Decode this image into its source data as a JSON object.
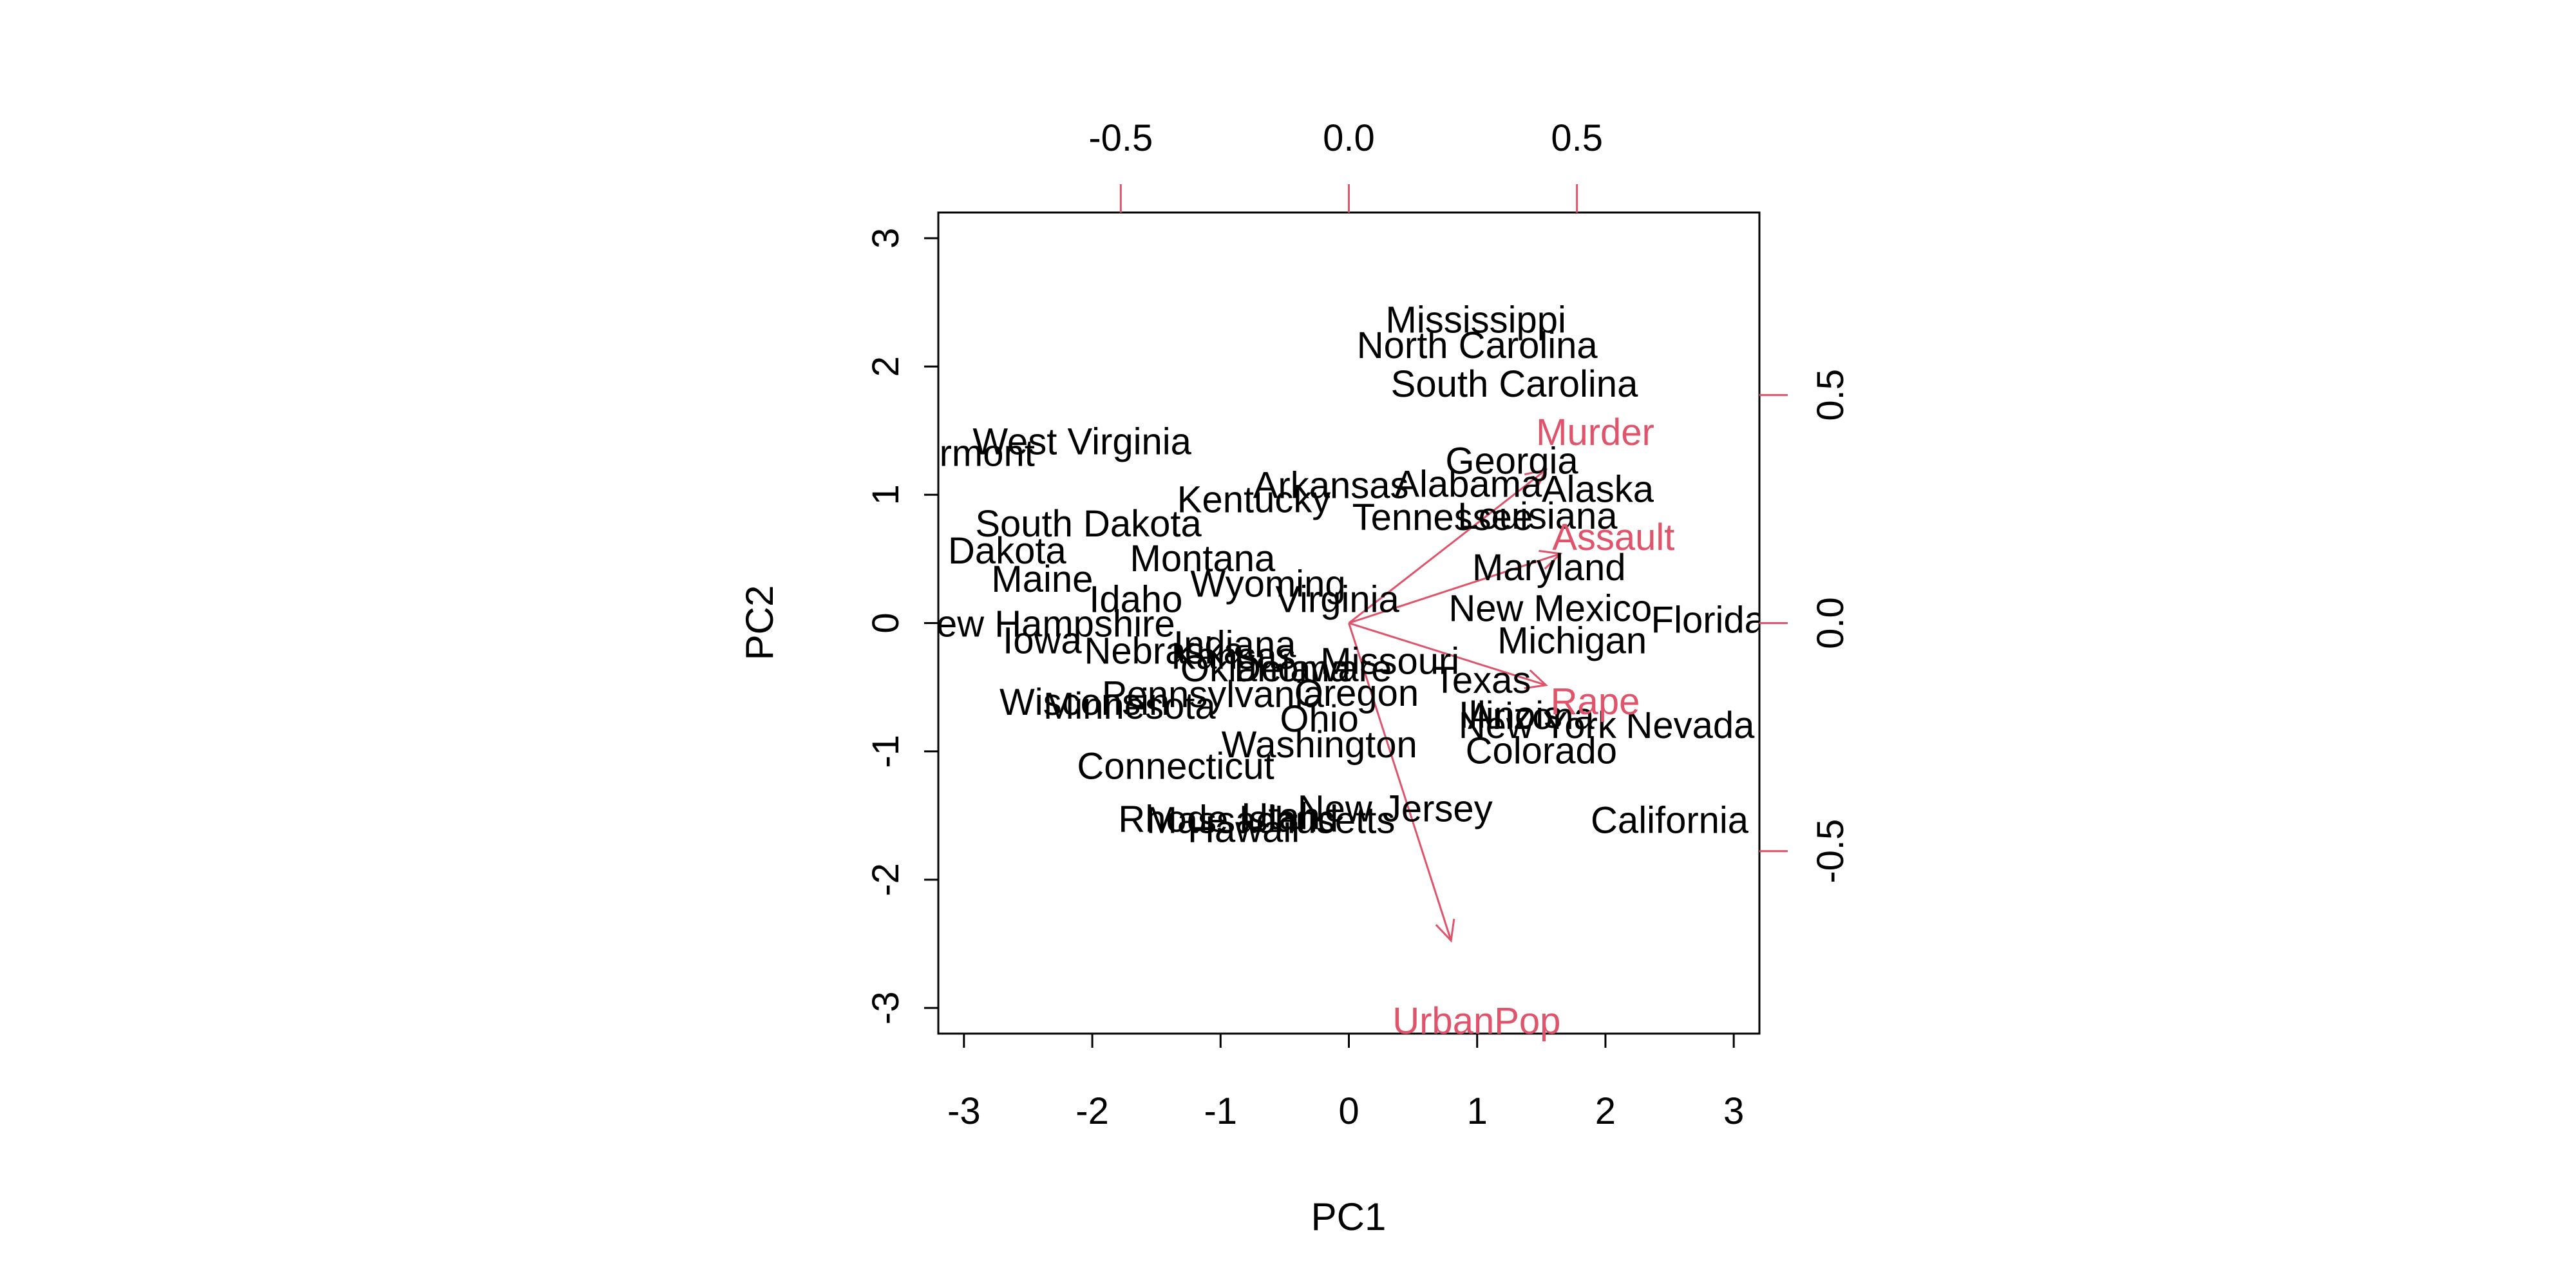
{
  "chart_data": {
    "type": "scatter",
    "title": "",
    "xlabel": "PC1",
    "ylabel": "PC2",
    "xlim": [
      -3.2,
      3.2
    ],
    "ylim": [
      -3.2,
      3.2
    ],
    "xticks": [
      "-3",
      "-2",
      "-1",
      "0",
      "1",
      "2",
      "3"
    ],
    "yticks": [
      "-3",
      "-2",
      "-1",
      "0",
      "1",
      "2",
      "3"
    ],
    "loadings_lim": [
      -0.9,
      0.9
    ],
    "top_ticks": [
      "-0.5",
      "0.0",
      "0.5"
    ],
    "right_ticks": [
      "-0.5",
      "0.0",
      "0.5"
    ],
    "colors": {
      "scores": "#000000",
      "loadings": "#DF536B"
    },
    "grid": false,
    "points": [
      {
        "label": "Mississippi",
        "x": 0.99,
        "y": 2.37
      },
      {
        "label": "North Carolina",
        "x": 1.0,
        "y": 2.17
      },
      {
        "label": "South Carolina",
        "x": 1.29,
        "y": 1.87
      },
      {
        "label": "West Virginia",
        "x": -2.08,
        "y": 1.42
      },
      {
        "label": "Vermont",
        "x": -2.99,
        "y": 1.33
      },
      {
        "label": "Georgia",
        "x": 1.27,
        "y": 1.27
      },
      {
        "label": "Arkansas",
        "x": -0.14,
        "y": 1.08
      },
      {
        "label": "Alabama",
        "x": 0.93,
        "y": 1.09
      },
      {
        "label": "Alaska",
        "x": 1.94,
        "y": 1.05
      },
      {
        "label": "Kentucky",
        "x": -0.74,
        "y": 0.97
      },
      {
        "label": "South Dakota",
        "x": -2.03,
        "y": 0.78
      },
      {
        "label": "Tennessee",
        "x": 0.73,
        "y": 0.83
      },
      {
        "label": "Louisiana",
        "x": 1.47,
        "y": 0.84
      },
      {
        "label": "North Dakota",
        "x": -3.06,
        "y": 0.57
      },
      {
        "label": "Montana",
        "x": -1.14,
        "y": 0.51
      },
      {
        "label": "Maryland",
        "x": 1.56,
        "y": 0.44
      },
      {
        "label": "Maine",
        "x": -2.39,
        "y": 0.35
      },
      {
        "label": "Idaho",
        "x": -1.66,
        "y": 0.19
      },
      {
        "label": "Wyoming",
        "x": -0.63,
        "y": 0.31
      },
      {
        "label": "Virginia",
        "x": -0.09,
        "y": 0.19
      },
      {
        "label": "New Mexico",
        "x": 1.57,
        "y": 0.12
      },
      {
        "label": "Florida",
        "x": 2.8,
        "y": 0.03
      },
      {
        "label": "New Hampshire",
        "x": -2.39,
        "y": 0.0
      },
      {
        "label": "Iowa",
        "x": -2.39,
        "y": -0.13
      },
      {
        "label": "Michigan",
        "x": 1.74,
        "y": -0.13
      },
      {
        "label": "Indiana",
        "x": -0.89,
        "y": -0.16
      },
      {
        "label": "Nebraska",
        "x": -1.44,
        "y": -0.21
      },
      {
        "label": "Kansas",
        "x": -0.9,
        "y": -0.25
      },
      {
        "label": "Oklahoma",
        "x": -0.65,
        "y": -0.35
      },
      {
        "label": "Delaware",
        "x": -0.28,
        "y": -0.35
      },
      {
        "label": "Missouri",
        "x": 0.32,
        "y": -0.29
      },
      {
        "label": "Texas",
        "x": 1.04,
        "y": -0.44
      },
      {
        "label": "Pennsylvania",
        "x": -1.06,
        "y": -0.55
      },
      {
        "label": "Oregon",
        "x": 0.06,
        "y": -0.54
      },
      {
        "label": "Wisconsin",
        "x": -2.06,
        "y": -0.61
      },
      {
        "label": "Minnesota",
        "x": -1.71,
        "y": -0.64
      },
      {
        "label": "Ohio",
        "x": -0.23,
        "y": -0.74
      },
      {
        "label": "Illinois",
        "x": 1.26,
        "y": -0.71
      },
      {
        "label": "Arizona",
        "x": 1.42,
        "y": -0.72
      },
      {
        "label": "New York",
        "x": 1.47,
        "y": -0.79
      },
      {
        "label": "Nevada",
        "x": 2.66,
        "y": -0.79
      },
      {
        "label": "Washington",
        "x": -0.23,
        "y": -0.94
      },
      {
        "label": "Colorado",
        "x": 1.5,
        "y": -0.99
      },
      {
        "label": "Connecticut",
        "x": -1.35,
        "y": -1.11
      },
      {
        "label": "New Jersey",
        "x": 0.36,
        "y": -1.44
      },
      {
        "label": "Rhode Island",
        "x": -0.94,
        "y": -1.52
      },
      {
        "label": "Utah",
        "x": -0.53,
        "y": -1.5
      },
      {
        "label": "Massachusetts",
        "x": -0.61,
        "y": -1.53
      },
      {
        "label": "Hawaii",
        "x": -0.82,
        "y": -1.6
      },
      {
        "label": "California",
        "x": 2.5,
        "y": -1.53
      }
    ],
    "loadings": [
      {
        "name": "Murder",
        "x": 0.54,
        "y": 0.42
      },
      {
        "name": "Assault",
        "x": 0.58,
        "y": 0.19
      },
      {
        "name": "UrbanPop",
        "x": 0.28,
        "y": -0.87
      },
      {
        "name": "Rape",
        "x": 0.54,
        "y": -0.17
      }
    ]
  }
}
